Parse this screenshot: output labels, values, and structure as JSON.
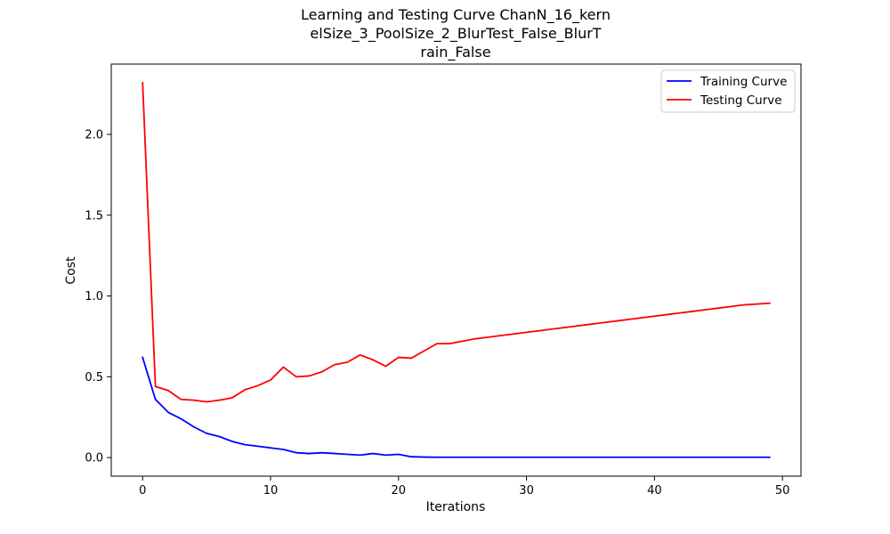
{
  "chart_data": {
    "type": "line",
    "title_lines": [
      "Learning and Testing Curve ChanN_16_kern",
      "elSize_3_PoolSize_2_BlurTest_False_BlurT",
      "rain_False"
    ],
    "xlabel": "Iterations",
    "ylabel": "Cost",
    "xlim": [
      -2.45,
      51.45
    ],
    "ylim": [
      -0.115,
      2.435
    ],
    "xticks": [
      0,
      10,
      20,
      30,
      40,
      50
    ],
    "xtick_labels": [
      "0",
      "10",
      "20",
      "30",
      "40",
      "50"
    ],
    "yticks": [
      0.0,
      0.5,
      1.0,
      1.5,
      2.0
    ],
    "ytick_labels": [
      "0.0",
      "0.5",
      "1.0",
      "1.5",
      "2.0"
    ],
    "grid": false,
    "legend_position": "top-right",
    "x": [
      0,
      1,
      2,
      3,
      4,
      5,
      6,
      7,
      8,
      9,
      10,
      11,
      12,
      13,
      14,
      15,
      16,
      17,
      18,
      19,
      20,
      21,
      22,
      23,
      24,
      25,
      26,
      27,
      28,
      29,
      30,
      31,
      32,
      33,
      34,
      35,
      36,
      37,
      38,
      39,
      40,
      41,
      42,
      43,
      44,
      45,
      46,
      47,
      48,
      49
    ],
    "series": [
      {
        "name": "Training Curve",
        "color": "#0000ff",
        "values": [
          0.62,
          0.36,
          0.28,
          0.24,
          0.19,
          0.15,
          0.13,
          0.1,
          0.08,
          0.07,
          0.06,
          0.05,
          0.03,
          0.025,
          0.03,
          0.025,
          0.02,
          0.015,
          0.025,
          0.015,
          0.02,
          0.005,
          0.003,
          0.002,
          0.002,
          0.002,
          0.002,
          0.002,
          0.002,
          0.002,
          0.002,
          0.002,
          0.002,
          0.002,
          0.002,
          0.002,
          0.002,
          0.002,
          0.002,
          0.002,
          0.002,
          0.002,
          0.002,
          0.002,
          0.002,
          0.002,
          0.002,
          0.002,
          0.002,
          0.002
        ]
      },
      {
        "name": "Testing Curve",
        "color": "#ff0000",
        "values": [
          2.32,
          0.44,
          0.415,
          0.36,
          0.355,
          0.345,
          0.355,
          0.37,
          0.42,
          0.445,
          0.48,
          0.56,
          0.5,
          0.505,
          0.53,
          0.575,
          0.59,
          0.635,
          0.605,
          0.565,
          0.62,
          0.615,
          0.66,
          0.705,
          0.705,
          0.72,
          0.735,
          0.745,
          0.755,
          0.765,
          0.775,
          0.785,
          0.795,
          0.805,
          0.815,
          0.825,
          0.835,
          0.845,
          0.855,
          0.865,
          0.875,
          0.885,
          0.895,
          0.905,
          0.915,
          0.925,
          0.935,
          0.945,
          0.95,
          0.955
        ]
      }
    ]
  }
}
